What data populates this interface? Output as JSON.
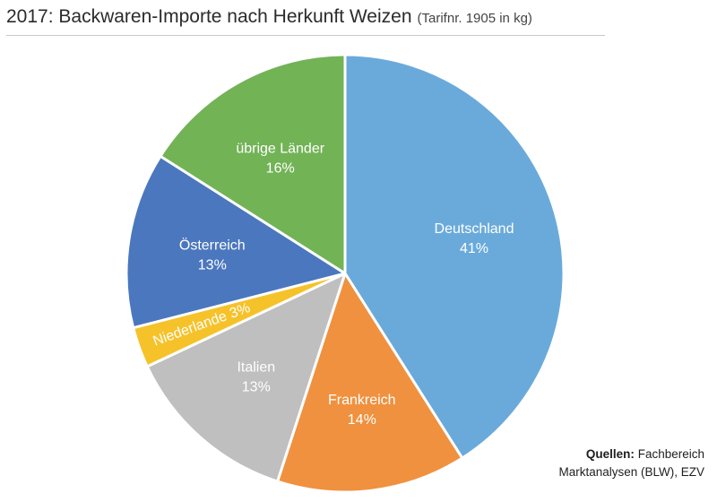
{
  "header": {
    "title": "2017: Backwaren-Importe nach Herkunft Weizen",
    "subtitle": "(Tarifnr. 1905 in kg)"
  },
  "sources": {
    "label": "Quellen:",
    "line1": "Fachbereich",
    "line2": "Marktanalysen (BLW), EZV"
  },
  "chart_data": {
    "type": "pie",
    "title": "2017: Backwaren-Importe nach Herkunft Weizen",
    "subtitle": "(Tarifnr. 1905 in kg)",
    "slices": [
      {
        "label": "Deutschland",
        "value": 41,
        "value_label": "41%",
        "color": "#6aaadb"
      },
      {
        "label": "Frankreich",
        "value": 14,
        "value_label": "14%",
        "color": "#f0913f"
      },
      {
        "label": "Italien",
        "value": 13,
        "value_label": "13%",
        "color": "#bfbfbf"
      },
      {
        "label": "Niederlande",
        "value": 3,
        "value_label": "3%",
        "color": "#f6c22a"
      },
      {
        "label": "Österreich",
        "value": 13,
        "value_label": "13%",
        "color": "#4b77be"
      },
      {
        "label": "übrige Länder",
        "value": 16,
        "value_label": "16%",
        "color": "#72b356"
      }
    ],
    "start_angle": "12 o'clock",
    "direction": "clockwise",
    "legend": "none"
  }
}
